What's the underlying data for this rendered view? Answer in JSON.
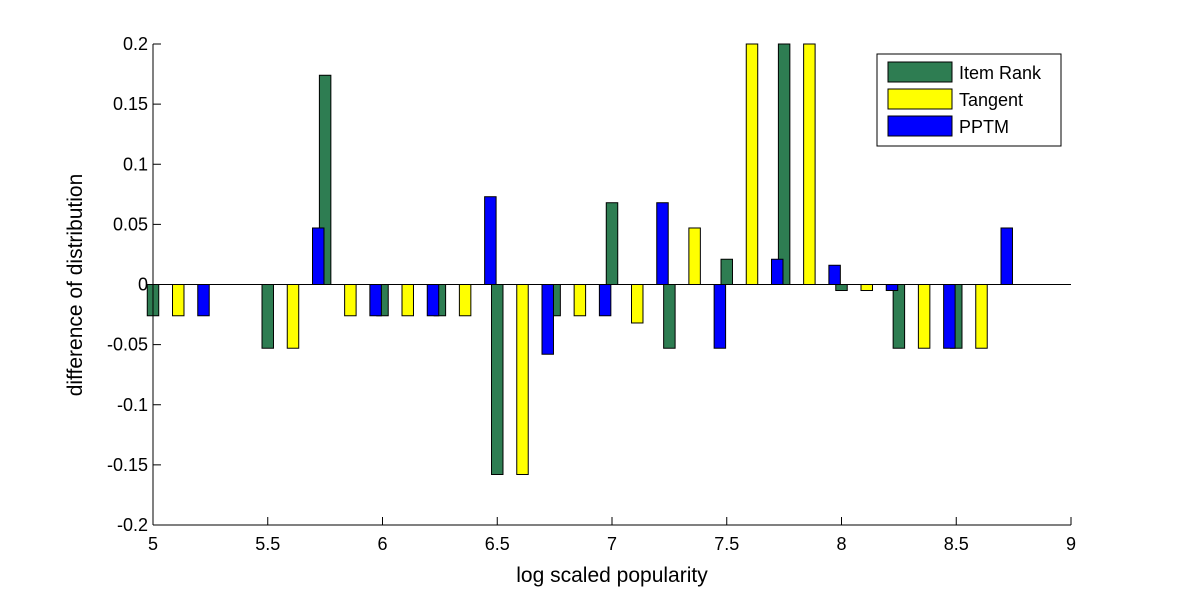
{
  "chart_data": {
    "type": "bar",
    "title": "",
    "xlabel": "log scaled popularity",
    "ylabel": "difference of distribution",
    "xlim": [
      5,
      9
    ],
    "ylim": [
      -0.2,
      0.2
    ],
    "xticks": [
      5,
      5.5,
      6,
      6.5,
      7,
      7.5,
      8,
      8.5,
      9
    ],
    "xtick_labels": [
      "5",
      "5.5",
      "6",
      "6.5",
      "7",
      "7.5",
      "8",
      "8.5",
      "9"
    ],
    "yticks": [
      -0.2,
      -0.15,
      -0.1,
      -0.05,
      0,
      0.05,
      0.1,
      0.15,
      0.2
    ],
    "ytick_labels": [
      "-0.2",
      "-0.15",
      "-0.1",
      "-0.05",
      "0",
      "0.05",
      "0.1",
      "0.15",
      "0.2"
    ],
    "grid": false,
    "legend_position": "top-right",
    "categories": [
      5.11,
      5.61,
      5.86,
      6.11,
      6.36,
      6.61,
      6.86,
      7.11,
      7.36,
      7.61,
      7.86,
      8.11,
      8.36,
      8.61
    ],
    "series": [
      {
        "name": "Item Rank",
        "color": "#2e7d52",
        "values": [
          -0.026,
          -0.053,
          0.174,
          -0.026,
          -0.026,
          -0.158,
          -0.026,
          0.068,
          -0.053,
          0.021,
          0.2,
          -0.005,
          -0.053,
          -0.053
        ]
      },
      {
        "name": "Tangent",
        "color": "#ffff00",
        "values": [
          -0.026,
          -0.053,
          -0.026,
          -0.026,
          -0.026,
          -0.158,
          -0.026,
          -0.032,
          0.047,
          0.2,
          0.2,
          -0.005,
          -0.053,
          -0.053
        ]
      },
      {
        "name": "PPTM",
        "color": "#0000ff",
        "values": [
          -0.026,
          0.047,
          -0.026,
          -0.026,
          0.073,
          -0.058,
          -0.026,
          0.068,
          -0.053,
          0.021,
          0.016,
          -0.005,
          -0.053,
          0.047
        ]
      }
    ]
  }
}
